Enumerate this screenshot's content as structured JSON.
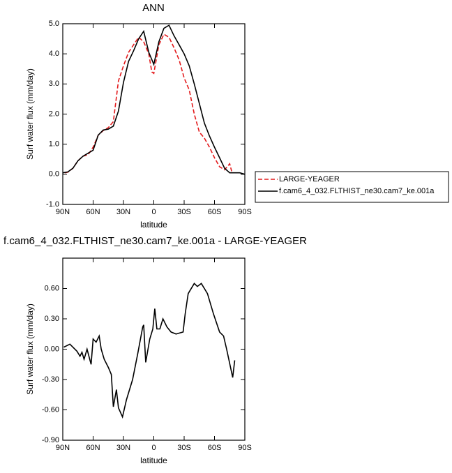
{
  "chart_data": [
    {
      "type": "line",
      "title": "ANN",
      "x_label": "latitude",
      "y_label": "Surf water flux (mm/day)",
      "xlim": [
        90,
        -90
      ],
      "xticks": [
        {
          "value": 90,
          "label": "90N"
        },
        {
          "value": 60,
          "label": "60N"
        },
        {
          "value": 30,
          "label": "30N"
        },
        0,
        {
          "value": -30,
          "label": "30S"
        },
        {
          "value": -60,
          "label": "60S"
        },
        {
          "value": -90,
          "label": "90S"
        }
      ],
      "ylim": [
        -1,
        5
      ],
      "yticks": [
        {
          "value": -1,
          "label": "-1.0"
        },
        {
          "value": 0,
          "label": "0.0"
        },
        {
          "value": 1,
          "label": "1.0"
        },
        {
          "value": 2,
          "label": "2.0"
        },
        {
          "value": 3,
          "label": "3.0"
        },
        {
          "value": 4,
          "label": "4.0"
        },
        {
          "value": 5,
          "label": "5.0"
        }
      ],
      "legend": "right",
      "series": [
        {
          "name": "LARGE-YEAGER",
          "color": "#e31a1c",
          "dashed": true,
          "x": [
            88,
            85,
            80,
            75,
            70,
            65,
            60,
            55,
            50,
            45,
            40,
            35,
            30,
            25,
            20,
            15,
            10,
            5,
            2,
            0,
            -5,
            -10,
            -15,
            -20,
            -25,
            -30,
            -35,
            -40,
            -45,
            -50,
            -55,
            -60,
            -65,
            -70,
            -75,
            -77
          ],
          "values": [
            0.05,
            0.07,
            0.2,
            0.45,
            0.6,
            0.65,
            0.9,
            1.3,
            1.45,
            1.55,
            1.75,
            3.1,
            3.6,
            4.05,
            4.3,
            4.55,
            4.4,
            4.0,
            3.4,
            3.35,
            4.3,
            4.65,
            4.55,
            4.2,
            3.8,
            3.2,
            2.8,
            2.0,
            1.4,
            1.2,
            0.9,
            0.55,
            0.25,
            0.15,
            0.35,
            0.1
          ]
        },
        {
          "name": "f.cam6_4_032.FLTHIST_ne30.cam7_ke.001a",
          "color": "#000000",
          "dashed": false,
          "x": [
            90,
            85,
            80,
            75,
            70,
            65,
            60,
            55,
            50,
            45,
            40,
            35,
            30,
            25,
            20,
            15,
            10,
            5,
            0,
            -5,
            -10,
            -15,
            -20,
            -25,
            -30,
            -35,
            -40,
            -45,
            -50,
            -55,
            -60,
            -65,
            -70,
            -75,
            -80,
            -85,
            -90
          ],
          "values": [
            0.05,
            0.08,
            0.2,
            0.45,
            0.6,
            0.7,
            0.8,
            1.3,
            1.47,
            1.5,
            1.6,
            2.1,
            3.05,
            3.75,
            4.1,
            4.5,
            4.75,
            4.05,
            3.65,
            4.4,
            4.85,
            4.95,
            4.6,
            4.3,
            4.0,
            3.6,
            3.0,
            2.35,
            1.7,
            1.27,
            0.9,
            0.55,
            0.2,
            0.05,
            0.05,
            0.05,
            0.0
          ]
        }
      ]
    },
    {
      "type": "line",
      "title": "f.cam6_4_032.FLTHIST_ne30.cam7_ke.001a - LARGE-YEAGER",
      "x_label": "latitude",
      "y_label": "Surf water flux (mm/day)",
      "xlim": [
        90,
        -90
      ],
      "xticks": [
        {
          "value": 90,
          "label": "90N"
        },
        {
          "value": 60,
          "label": "60N"
        },
        {
          "value": 30,
          "label": "30N"
        },
        0,
        {
          "value": -30,
          "label": "30S"
        },
        {
          "value": -60,
          "label": "60S"
        },
        {
          "value": -90,
          "label": "90S"
        }
      ],
      "ylim": [
        -0.9,
        0.9
      ],
      "yticks": [
        {
          "value": -0.9,
          "label": "-0.90"
        },
        {
          "value": -0.6,
          "label": "-0.60"
        },
        {
          "value": -0.3,
          "label": "-0.30"
        },
        {
          "value": 0,
          "label": "0.00"
        },
        {
          "value": 0.3,
          "label": "0.30"
        },
        {
          "value": 0.6,
          "label": "0.60"
        }
      ],
      "series": [
        {
          "color": "#000000",
          "dashed": false,
          "x": [
            89,
            83,
            76,
            73,
            71,
            69,
            66,
            62,
            60,
            57,
            54,
            52,
            49,
            45,
            42,
            40,
            37,
            35,
            31,
            27,
            21,
            16,
            11,
            10,
            8,
            4,
            1,
            -1,
            -3,
            -6,
            -9,
            -13,
            -17,
            -22,
            -29,
            -31,
            -34,
            -40,
            -43,
            -47,
            -53,
            -59,
            -65,
            -69,
            -72,
            -78,
            -80
          ],
          "values": [
            0.02,
            0.05,
            -0.02,
            -0.07,
            -0.03,
            -0.1,
            0.0,
            -0.15,
            0.1,
            0.07,
            0.13,
            0.0,
            -0.1,
            -0.18,
            -0.25,
            -0.57,
            -0.4,
            -0.58,
            -0.67,
            -0.5,
            -0.3,
            -0.05,
            0.22,
            0.24,
            -0.13,
            0.1,
            0.2,
            0.4,
            0.2,
            0.2,
            0.3,
            0.22,
            0.17,
            0.15,
            0.17,
            0.35,
            0.55,
            0.65,
            0.62,
            0.65,
            0.55,
            0.35,
            0.17,
            0.13,
            0.0,
            -0.28,
            -0.11
          ]
        }
      ]
    }
  ]
}
